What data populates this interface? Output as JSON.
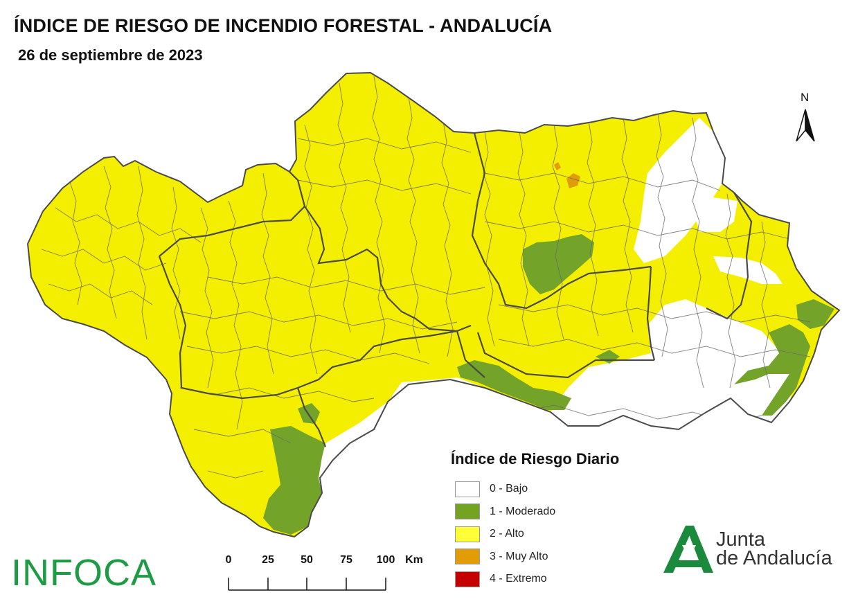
{
  "header": {
    "title": "ÍNDICE DE RIESGO DE INCENDIO FORESTAL - ANDALUCÍA",
    "date": "26 de septiembre de 2023"
  },
  "north_arrow": {
    "label": "N"
  },
  "legend": {
    "title": "Índice de Riesgo Diario",
    "items": [
      {
        "label": "0 - Bajo",
        "color": "#ffffff"
      },
      {
        "label": "1 - Moderado",
        "color": "#73a321"
      },
      {
        "label": "2 - Alto",
        "color": "#ffff37"
      },
      {
        "label": "3 - Muy Alto",
        "color": "#e29c05"
      },
      {
        "label": "4 - Extremo",
        "color": "#c50000"
      }
    ]
  },
  "scale_bar": {
    "ticks": [
      "0",
      "25",
      "50",
      "75",
      "100"
    ],
    "unit": "Km"
  },
  "logos": {
    "infoca": "INFOCA",
    "junta_line1": "Junta",
    "junta_line2": "de Andalucía"
  },
  "colors": {
    "alto": "#f4ef00",
    "bajo": "#ffffff",
    "moderado": "#74a32a",
    "muy_alto": "#e29c05",
    "boundary": "#555555",
    "infoca_green": "#1f9a45",
    "junta_green": "#1c8a3c"
  }
}
